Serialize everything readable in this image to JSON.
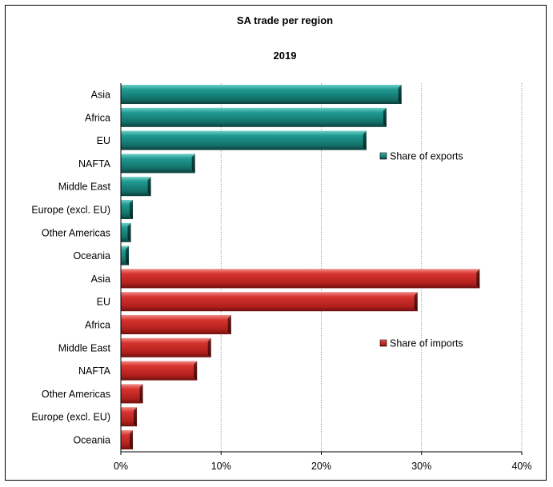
{
  "chart_data": {
    "type": "bar",
    "orientation": "horizontal",
    "title": "SA trade per region",
    "subtitle": "2019",
    "xlim": [
      0,
      40
    ],
    "x_ticks": [
      "0%",
      "10%",
      "20%",
      "30%",
      "40%"
    ],
    "grid": "vertical dashed",
    "series": [
      {
        "name": "Share of exports",
        "color": "#1a8a84",
        "categories": [
          "Asia",
          "Africa",
          "EU",
          "NAFTA",
          "Middle East",
          "Europe (excl. EU)",
          "Other Americas",
          "Oceania"
        ],
        "values": [
          28.0,
          26.5,
          24.5,
          7.4,
          3.0,
          1.2,
          1.0,
          0.8
        ]
      },
      {
        "name": "Share of imports",
        "color": "#cc2a26",
        "categories": [
          "Asia",
          "EU",
          "Africa",
          "Middle East",
          "NAFTA",
          "Other Americas",
          "Europe (excl. EU)",
          "Oceania"
        ],
        "values": [
          35.8,
          29.6,
          11.0,
          9.0,
          7.6,
          2.2,
          1.6,
          1.2
        ]
      }
    ]
  }
}
